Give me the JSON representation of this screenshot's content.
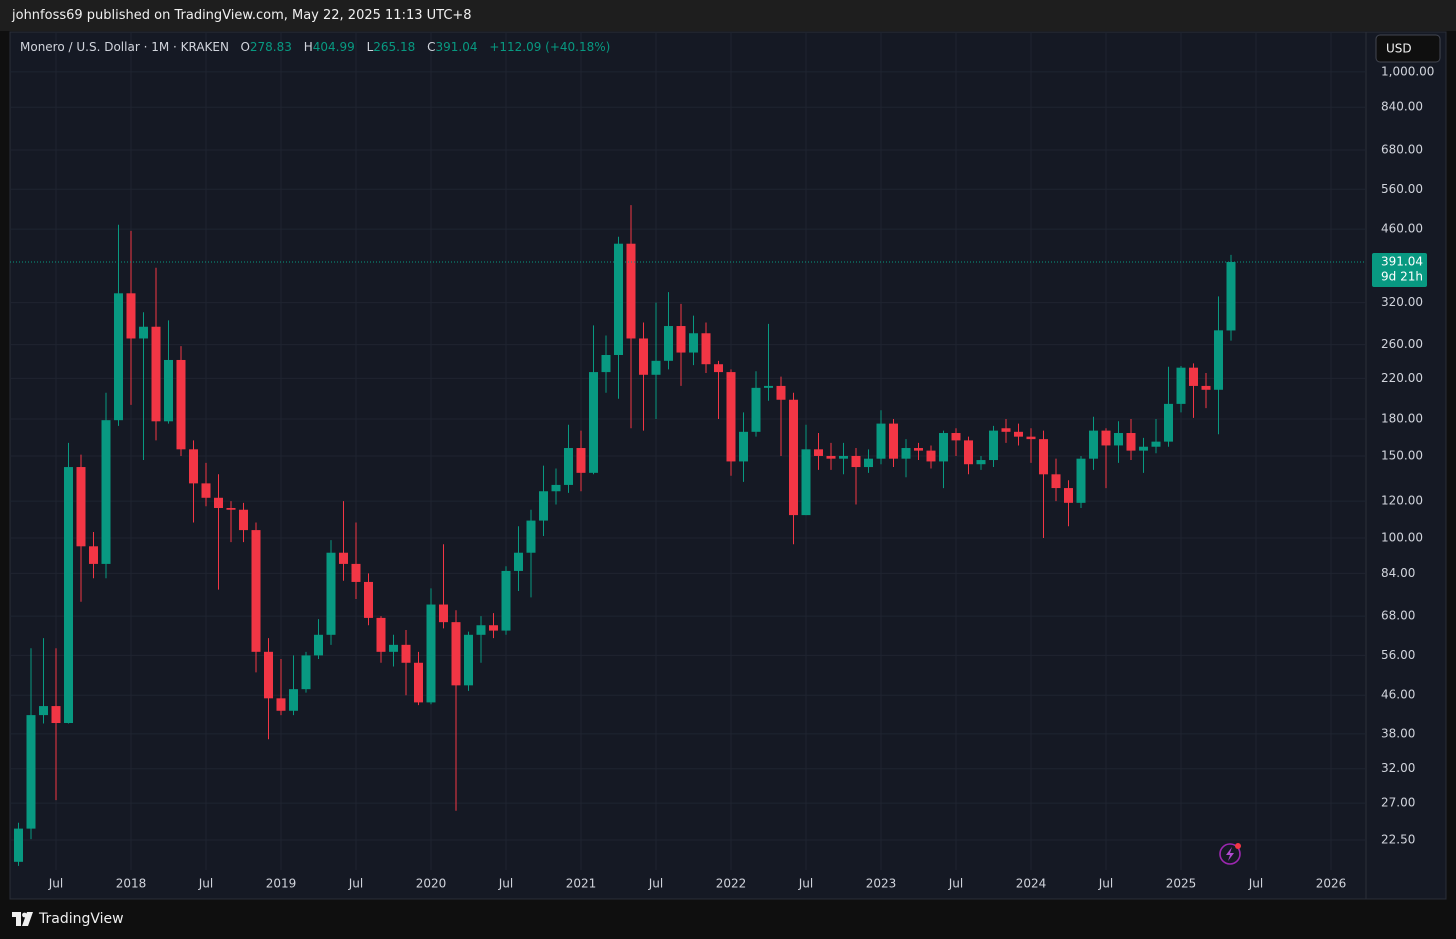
{
  "header": {
    "text": "johnfoss69 published on TradingView.com, May 22, 2025 11:13 UTC+8"
  },
  "footer": {
    "brand": "TradingView"
  },
  "chart_data": {
    "type": "candlestick",
    "title": "Monero / U.S. Dollar · 1M · KRAKEN",
    "legend_labels": [
      "O",
      "H",
      "L",
      "C"
    ],
    "change": "+112.09 (+40.18%)",
    "currency": "USD",
    "countdown": "9d 21h",
    "up_color": "#089981",
    "down_color": "#f23645",
    "log_scale": true,
    "grid": true,
    "x": [
      "2017-04",
      "2017-05",
      "2017-06",
      "2017-07",
      "2017-08",
      "2017-09",
      "2017-10",
      "2017-11",
      "2017-12",
      "2018-01",
      "2018-02",
      "2018-03",
      "2018-04",
      "2018-05",
      "2018-06",
      "2018-07",
      "2018-08",
      "2018-09",
      "2018-10",
      "2018-11",
      "2018-12",
      "2019-01",
      "2019-02",
      "2019-03",
      "2019-04",
      "2019-05",
      "2019-06",
      "2019-07",
      "2019-08",
      "2019-09",
      "2019-10",
      "2019-11",
      "2019-12",
      "2020-01",
      "2020-02",
      "2020-03",
      "2020-04",
      "2020-05",
      "2020-06",
      "2020-07",
      "2020-08",
      "2020-09",
      "2020-10",
      "2020-11",
      "2020-12",
      "2021-01",
      "2021-02",
      "2021-03",
      "2021-04",
      "2021-05",
      "2021-06",
      "2021-07",
      "2021-08",
      "2021-09",
      "2021-10",
      "2021-11",
      "2021-12",
      "2022-01",
      "2022-02",
      "2022-03",
      "2022-04",
      "2022-05",
      "2022-06",
      "2022-07",
      "2022-08",
      "2022-09",
      "2022-10",
      "2022-11",
      "2022-12",
      "2023-01",
      "2023-02",
      "2023-03",
      "2023-04",
      "2023-05",
      "2023-06",
      "2023-07",
      "2023-08",
      "2023-09",
      "2023-10",
      "2023-11",
      "2023-12",
      "2024-01",
      "2024-02",
      "2024-03",
      "2024-04",
      "2024-05",
      "2024-06",
      "2024-07",
      "2024-08",
      "2024-09",
      "2024-10",
      "2024-11",
      "2024-12",
      "2025-01",
      "2025-02",
      "2025-03",
      "2025-04",
      "2025-05"
    ],
    "open": [
      20.2,
      23.8,
      41.7,
      43.6,
      40.1,
      142,
      96,
      88,
      179,
      335,
      268,
      284,
      178,
      241,
      155,
      131,
      122,
      116,
      115,
      104,
      57,
      45.3,
      42.6,
      47.4,
      56,
      62,
      93,
      88,
      80.5,
      67.4,
      57,
      59,
      54,
      44.4,
      72,
      66,
      48.3,
      62,
      65,
      63.3,
      85,
      93,
      109,
      126,
      130,
      156,
      138,
      227,
      247,
      428,
      268,
      224,
      240,
      285,
      250,
      275,
      236,
      227,
      146,
      169,
      210,
      212,
      198,
      112,
      155,
      150,
      148,
      150,
      142,
      148,
      176,
      148,
      156,
      154,
      146,
      168,
      162,
      144,
      147,
      172,
      169,
      165,
      163,
      137,
      128,
      119,
      148,
      170,
      158,
      168,
      154,
      157,
      161,
      194,
      232,
      212,
      208,
      278.83
    ],
    "high": [
      24.5,
      58,
      61,
      58,
      160,
      151,
      103,
      205,
      470,
      456,
      305,
      380,
      293,
      258,
      162,
      145,
      137,
      120,
      119,
      108,
      61,
      55,
      56,
      57,
      67,
      99,
      120,
      108,
      84,
      68,
      62,
      63.5,
      57,
      78,
      97,
      70,
      63,
      68,
      69,
      87,
      106,
      115,
      143,
      141,
      175,
      170,
      286,
      272,
      443,
      518,
      290,
      320,
      337,
      318,
      300,
      290,
      240,
      230,
      186,
      228,
      288,
      222,
      205,
      175,
      168,
      160,
      160,
      156,
      155,
      188,
      180,
      163,
      160,
      158,
      170,
      172,
      165,
      150,
      174,
      180,
      176,
      172,
      170,
      148,
      133,
      150,
      182,
      172,
      178,
      180,
      164,
      180,
      233,
      234,
      237,
      226,
      330,
      404.99
    ],
    "low": [
      19.8,
      22.6,
      40,
      27.4,
      40,
      73,
      82,
      82,
      174,
      193,
      147,
      162,
      176,
      150,
      108,
      117,
      77.5,
      98,
      98,
      51.5,
      37,
      41.7,
      41.7,
      46.6,
      55,
      59,
      81,
      74,
      65,
      54,
      53,
      46,
      43.8,
      44,
      64,
      26,
      47,
      54,
      61,
      62,
      77,
      74.6,
      101,
      118,
      125,
      126,
      137,
      205,
      199,
      172,
      170,
      180,
      230,
      212,
      235,
      226,
      180,
      136,
      132,
      165,
      197,
      150,
      97,
      112,
      140,
      140,
      137,
      118,
      138,
      144,
      142,
      135,
      147,
      141,
      128,
      150,
      137,
      140,
      142,
      160,
      158,
      145,
      100,
      120,
      106,
      116,
      140,
      128,
      145,
      147,
      138,
      152,
      157,
      186,
      181,
      190,
      167,
      265.18
    ],
    "close": [
      23.8,
      41.7,
      43.6,
      40.1,
      142,
      96,
      88,
      179,
      335,
      268,
      284,
      178,
      241,
      155,
      131,
      122,
      116,
      115,
      104,
      57,
      45.3,
      42.6,
      47.4,
      56,
      62,
      93,
      88,
      80.5,
      67.4,
      57,
      59,
      54,
      44.4,
      72,
      66,
      48.3,
      62,
      65,
      63.3,
      85,
      93,
      109,
      126,
      130,
      156,
      138,
      227,
      247,
      428,
      268,
      224,
      240,
      285,
      250,
      275,
      236,
      227,
      146,
      169,
      210,
      212,
      198,
      112,
      155,
      150,
      148,
      150,
      142,
      148,
      176,
      148,
      156,
      154,
      146,
      168,
      162,
      144,
      147,
      170,
      169,
      165,
      163,
      137,
      128,
      119,
      148,
      170,
      158,
      168,
      154,
      157,
      161,
      194,
      232,
      212,
      208,
      279,
      391.04
    ],
    "xlim": [
      "2017-03",
      "2026-04"
    ],
    "xticks": [
      {
        "value": "2017-07",
        "label": "Jul"
      },
      {
        "value": "2018-01",
        "label": "2018"
      },
      {
        "value": "2018-07",
        "label": "Jul"
      },
      {
        "value": "2019-01",
        "label": "2019"
      },
      {
        "value": "2019-07",
        "label": "Jul"
      },
      {
        "value": "2020-01",
        "label": "2020"
      },
      {
        "value": "2020-07",
        "label": "Jul"
      },
      {
        "value": "2021-01",
        "label": "2021"
      },
      {
        "value": "2021-07",
        "label": "Jul"
      },
      {
        "value": "2022-01",
        "label": "2022"
      },
      {
        "value": "2022-07",
        "label": "Jul"
      },
      {
        "value": "2023-01",
        "label": "2023"
      },
      {
        "value": "2023-07",
        "label": "Jul"
      },
      {
        "value": "2024-01",
        "label": "2024"
      },
      {
        "value": "2024-07",
        "label": "Jul"
      },
      {
        "value": "2025-01",
        "label": "2025"
      },
      {
        "value": "2025-07",
        "label": "Jul"
      },
      {
        "value": "2026-01",
        "label": "2026"
      }
    ],
    "ylim": [
      19.4,
      1218
    ],
    "yticks": [
      {
        "value": 22.5,
        "label": "22.50"
      },
      {
        "value": 27,
        "label": "27.00"
      },
      {
        "value": 32,
        "label": "32.00"
      },
      {
        "value": 38,
        "label": "38.00"
      },
      {
        "value": 46,
        "label": "46.00"
      },
      {
        "value": 56,
        "label": "56.00"
      },
      {
        "value": 68,
        "label": "68.00"
      },
      {
        "value": 84,
        "label": "84.00"
      },
      {
        "value": 100,
        "label": "100.00"
      },
      {
        "value": 120,
        "label": "120.00"
      },
      {
        "value": 150,
        "label": "150.00"
      },
      {
        "value": 180,
        "label": "180.00"
      },
      {
        "value": 220,
        "label": "220.00"
      },
      {
        "value": 260,
        "label": "260.00"
      },
      {
        "value": 320,
        "label": "320.00"
      },
      {
        "value": 460,
        "label": "460.00"
      },
      {
        "value": 560,
        "label": "560.00"
      },
      {
        "value": 680,
        "label": "680.00"
      },
      {
        "value": 840,
        "label": "840.00"
      },
      {
        "value": 1000,
        "label": "1,000.00"
      }
    ]
  }
}
